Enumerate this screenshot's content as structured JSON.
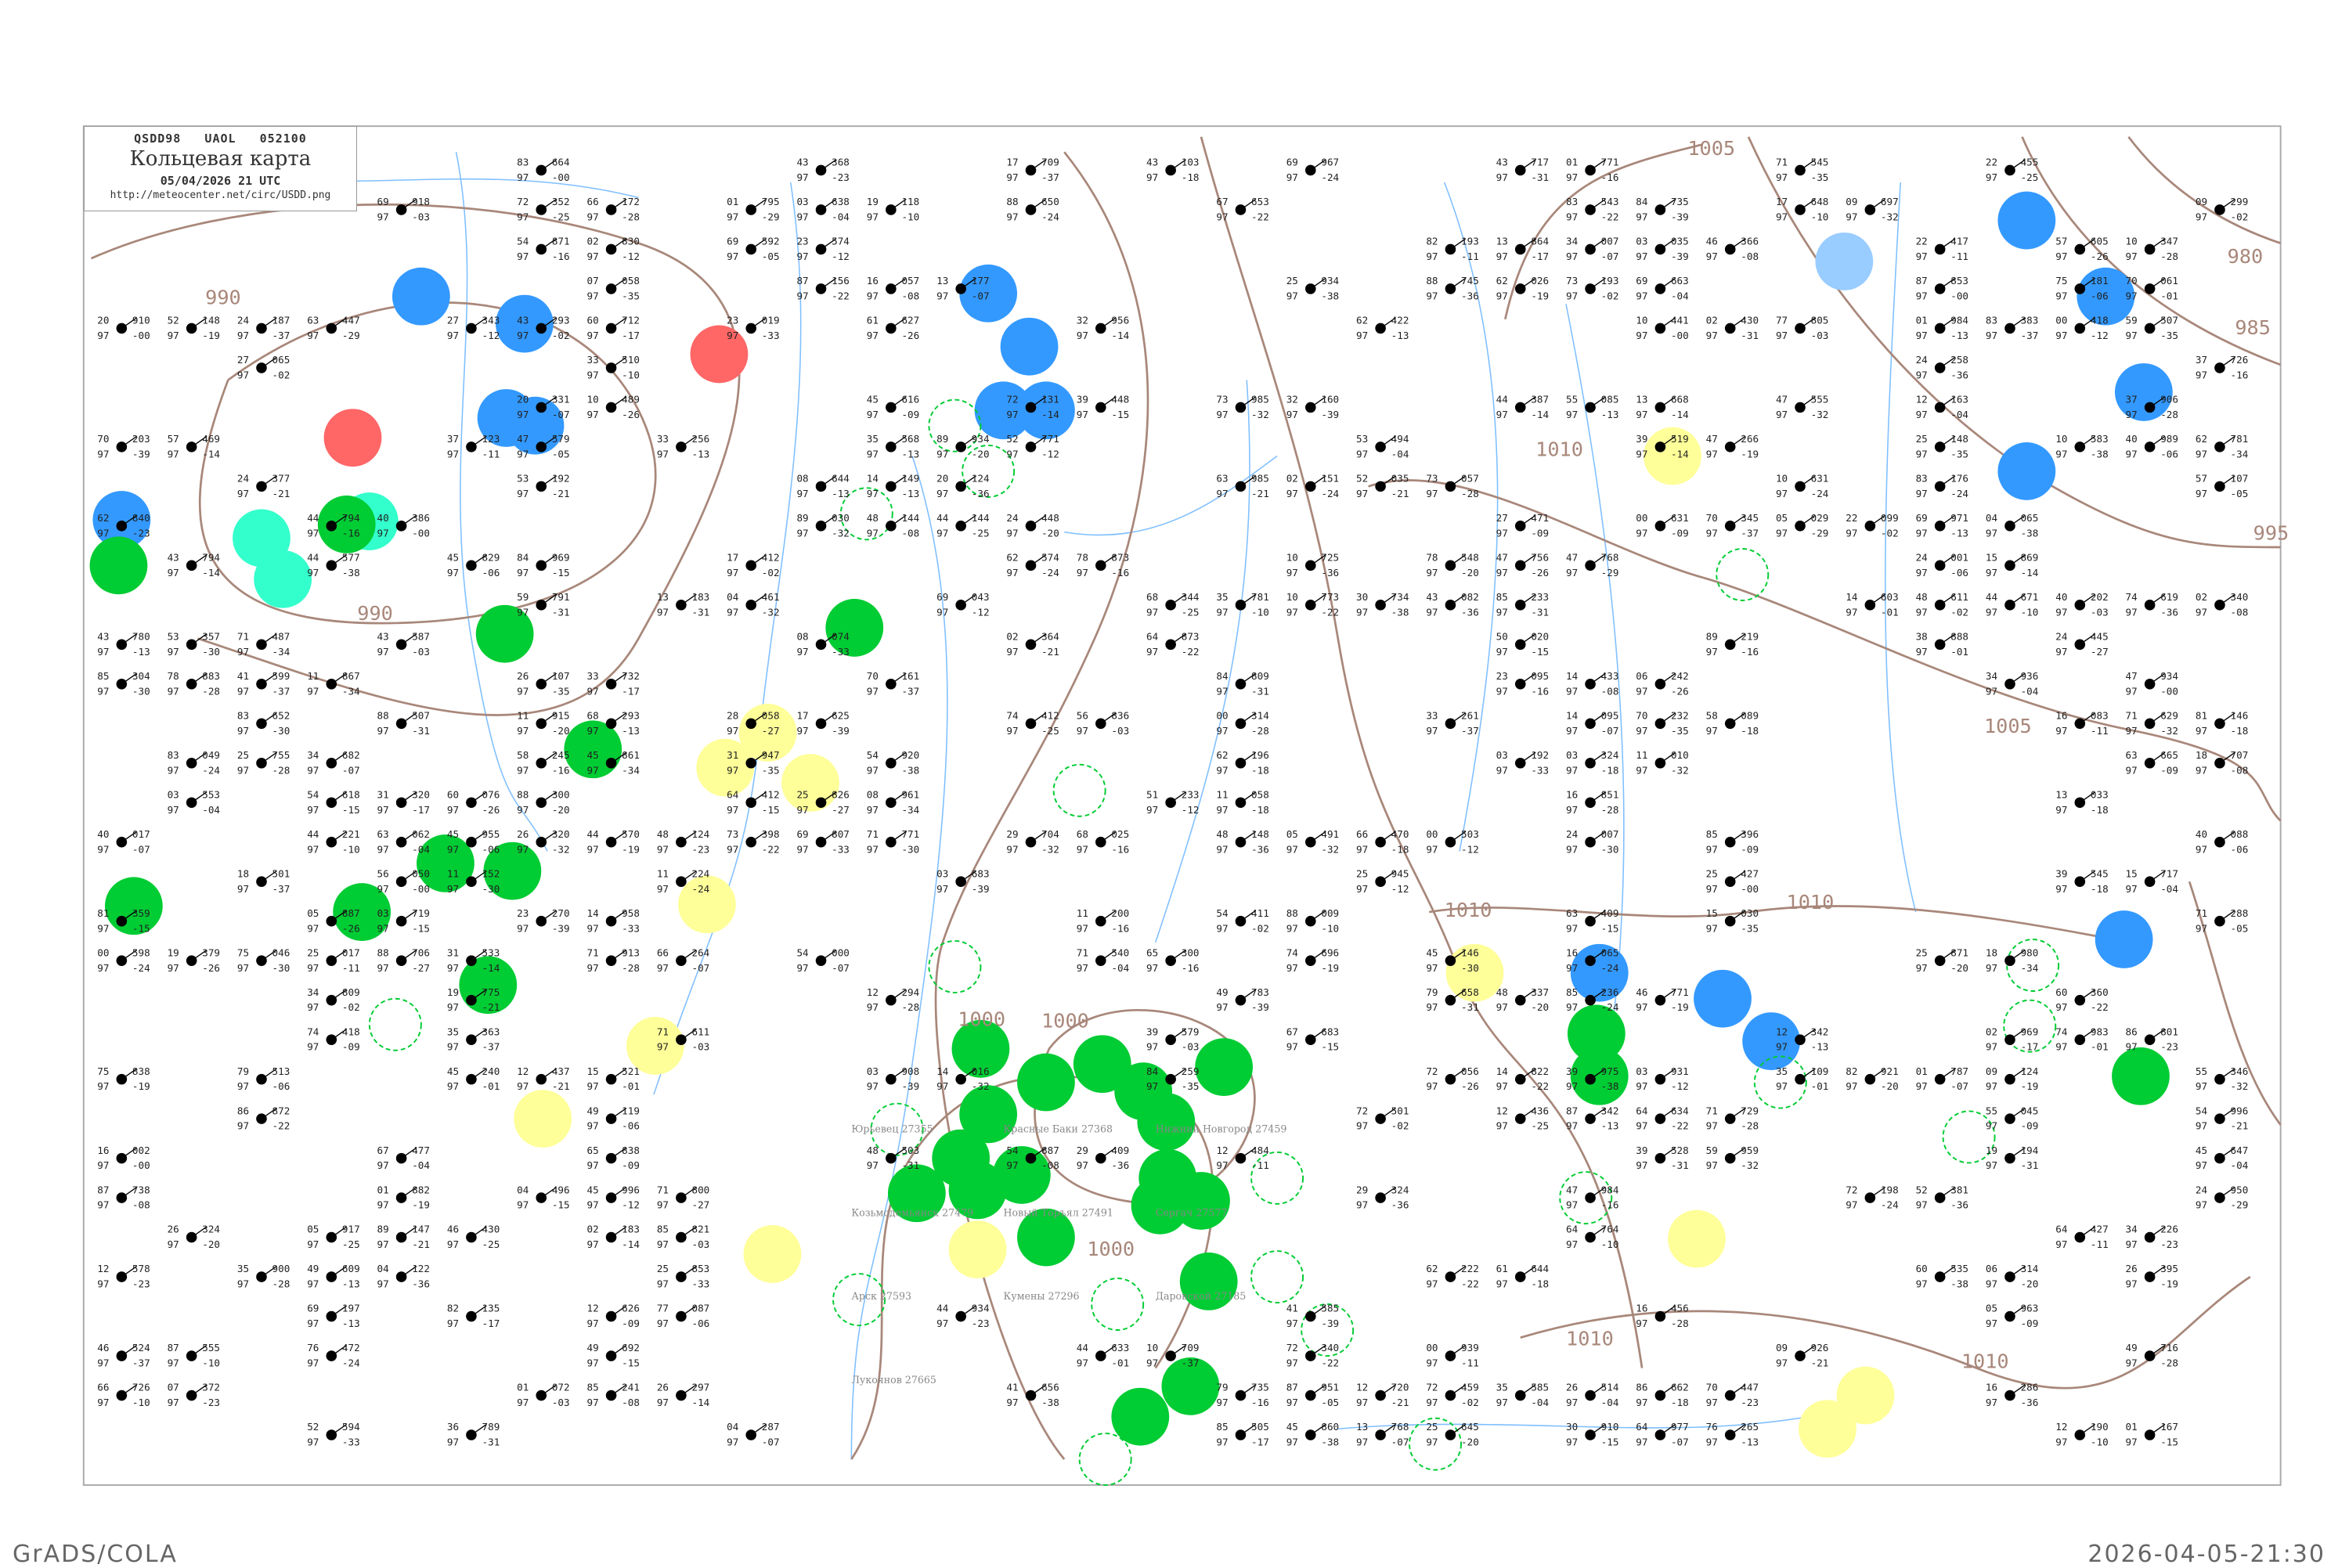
{
  "header": {
    "code_line": "QSDD98   UAOL   052100",
    "title": "Кольцевая карта",
    "datetime": "05/04/2026 21 UTC",
    "url": "http://meteocenter.net/circ/USDD.png"
  },
  "footer": {
    "left": "GrADS/COLA",
    "right": "2026-04-05-21:30"
  },
  "isobar_labels": [
    "990",
    "990",
    "1000",
    "1005",
    "980",
    "985",
    "995",
    "1005",
    "1010",
    "1010",
    "1010",
    "1000",
    "1000",
    "1010",
    "1010"
  ],
  "colors": {
    "isobar": "#a8877a",
    "river": "#7fbfff",
    "green": "#00cc33",
    "blue": "#3399ff",
    "red": "#ff6666",
    "yellow": "#ffff99",
    "cyan": "#33ffcc",
    "light_blue": "#99ccff"
  },
  "stations": [
    {
      "name": "Юрьевец 27355"
    },
    {
      "name": "Красные Баки 27368"
    },
    {
      "name": "Нижний Новгород 27459"
    },
    {
      "name": "Козьмодемьянск 27479"
    },
    {
      "name": "Новый Торъял 27491"
    },
    {
      "name": "Сергач 27577"
    },
    {
      "name": "Арск 27593"
    },
    {
      "name": "Кумены 27296"
    },
    {
      "name": "Даровской 27185"
    },
    {
      "name": "Лукоянов 27665"
    }
  ]
}
